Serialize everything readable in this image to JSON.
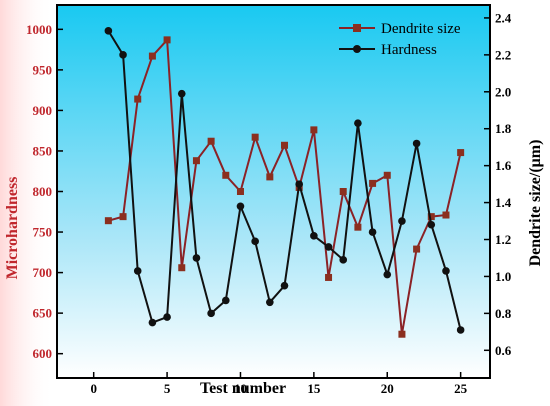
{
  "chart_data": {
    "type": "line",
    "title": "",
    "xlabel": "Test number",
    "ylabel_left": "Microhardness",
    "ylabel_right": "Dendrite size/(μm)",
    "xlim": [
      -2.5,
      27
    ],
    "ylim_left": [
      570,
      1030
    ],
    "ylim_right": [
      0.45,
      2.47
    ],
    "x_ticks": [
      0,
      5,
      10,
      15,
      20,
      25
    ],
    "y_ticks_left": [
      600,
      650,
      700,
      750,
      800,
      850,
      900,
      950,
      1000
    ],
    "y_ticks_right": [
      0.6,
      0.8,
      1.0,
      1.2,
      1.4,
      1.6,
      1.8,
      2.0,
      2.2,
      2.4
    ],
    "legend_position": "top-right",
    "colors": {
      "left_axis": "#c0272d",
      "dendrite_line": "#8b2226",
      "dendrite_marker": "#8b2f1f",
      "hardness_line": "#111111",
      "background_top": "#19c9f1",
      "background_bottom": "#ffffff",
      "left_band": "#ffd9d9"
    },
    "series": [
      {
        "name": "Dendrite size",
        "axis": "left",
        "marker": "square",
        "x": [
          1,
          2,
          3,
          4,
          5,
          6,
          7,
          8,
          9,
          10,
          11,
          12,
          13,
          14,
          15,
          16,
          17,
          18,
          19,
          20,
          21,
          22,
          23,
          24,
          25
        ],
        "values": [
          764,
          769,
          914,
          967,
          987,
          706,
          838,
          862,
          820,
          800,
          867,
          818,
          857,
          805,
          876,
          694,
          800,
          756,
          810,
          820,
          624,
          729,
          769,
          771,
          848
        ]
      },
      {
        "name": "Hardness",
        "axis": "right",
        "marker": "circle",
        "x": [
          1,
          2,
          3,
          4,
          5,
          6,
          7,
          8,
          9,
          10,
          11,
          12,
          13,
          14,
          15,
          16,
          17,
          18,
          19,
          20,
          21,
          22,
          23,
          24,
          25
        ],
        "values": [
          2.33,
          2.2,
          1.03,
          0.75,
          0.78,
          1.99,
          1.1,
          0.8,
          0.87,
          1.38,
          1.19,
          0.86,
          0.95,
          1.5,
          1.22,
          1.16,
          1.09,
          1.83,
          1.24,
          1.01,
          1.3,
          1.72,
          1.28,
          1.03,
          0.71
        ]
      }
    ]
  }
}
